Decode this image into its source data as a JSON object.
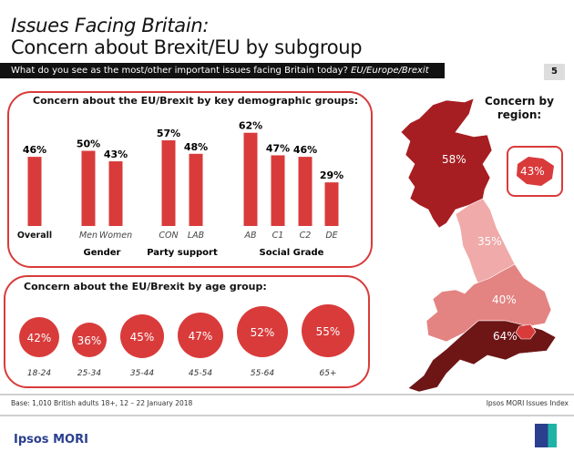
{
  "header": {
    "title_line1": "Issues Facing Britain:",
    "title_line2": "Concern about Brexit/EU by subgroup",
    "question": "What do you see as the most/other important issues facing Britain today?",
    "question_answer": "EU/Europe/Brexit",
    "page_number": "5"
  },
  "chart_data": [
    {
      "type": "bar",
      "title": "Concern about the EU/Brexit by key demographic groups:",
      "categories": [
        "Overall",
        "Men",
        "Women",
        "CON",
        "LAB",
        "AB",
        "C1",
        "C2",
        "DE"
      ],
      "values": [
        46,
        50,
        43,
        57,
        48,
        62,
        47,
        46,
        29
      ],
      "data_labels": [
        "46%",
        "50%",
        "43%",
        "57%",
        "48%",
        "62%",
        "47%",
        "46%",
        "29%"
      ],
      "groups": [
        {
          "name": "",
          "members": [
            "Overall"
          ]
        },
        {
          "name": "Gender",
          "members": [
            "Men",
            "Women"
          ]
        },
        {
          "name": "Party support",
          "members": [
            "CON",
            "LAB"
          ]
        },
        {
          "name": "Social Grade",
          "members": [
            "AB",
            "C1",
            "C2",
            "DE"
          ]
        }
      ],
      "unit": "%",
      "color": "#d93b3b"
    },
    {
      "type": "bubble",
      "title": "Concern about the EU/Brexit by age group:",
      "categories": [
        "18-24",
        "25-34",
        "35-44",
        "45-54",
        "55-64",
        "65+"
      ],
      "values": [
        42,
        36,
        45,
        47,
        52,
        55
      ],
      "data_labels": [
        "42%",
        "36%",
        "45%",
        "47%",
        "52%",
        "55%"
      ],
      "unit": "%",
      "color": "#d93b3b"
    },
    {
      "type": "choropleth",
      "title": "Concern by region:",
      "regions": [
        {
          "label": "58%",
          "value": 58,
          "color": "#a61e22"
        },
        {
          "label": "35%",
          "value": 35,
          "color": "#efaaa9"
        },
        {
          "label": "40%",
          "value": 40,
          "color": "#e38483"
        },
        {
          "label": "64%",
          "value": 64,
          "color": "#6e1516"
        },
        {
          "label": "43%",
          "value": 43,
          "color": "#d93b3b"
        }
      ]
    }
  ],
  "footer": {
    "base": "Base: 1,010 British adults 18+, 12 – 22 January 2018",
    "source": "Ipsos MORI Issues Index",
    "brand": "Ipsos MORI",
    "logo_text": "Ipsos"
  }
}
